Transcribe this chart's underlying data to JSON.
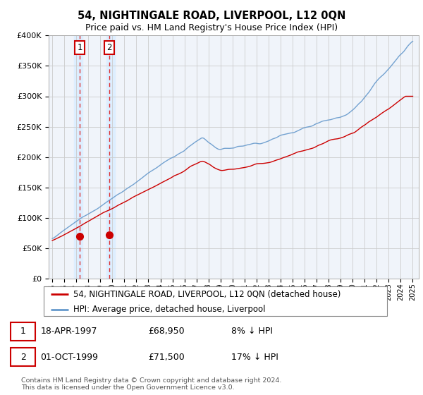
{
  "title": "54, NIGHTINGALE ROAD, LIVERPOOL, L12 0QN",
  "subtitle": "Price paid vs. HM Land Registry's House Price Index (HPI)",
  "legend_line1": "54, NIGHTINGALE ROAD, LIVERPOOL, L12 0QN (detached house)",
  "legend_line2": "HPI: Average price, detached house, Liverpool",
  "footer": "Contains HM Land Registry data © Crown copyright and database right 2024.\nThis data is licensed under the Open Government Licence v3.0.",
  "grid_color": "#cccccc",
  "hpi_line_color": "#6699cc",
  "price_line_color": "#cc0000",
  "marker_color": "#cc0000",
  "vline_color": "#dd3333",
  "shade_color": "#ddeeff",
  "plot_bg": "#f0f4fa",
  "ylim": [
    0,
    400000
  ],
  "yticks": [
    0,
    50000,
    100000,
    150000,
    200000,
    250000,
    300000,
    350000,
    400000
  ],
  "ytick_labels": [
    "£0",
    "£50K",
    "£100K",
    "£150K",
    "£200K",
    "£250K",
    "£300K",
    "£350K",
    "£400K"
  ],
  "sale1_x": 1997.29,
  "sale1_y": 68950,
  "sale2_x": 1999.75,
  "sale2_y": 71500,
  "xmin": 1995,
  "xmax": 2025
}
